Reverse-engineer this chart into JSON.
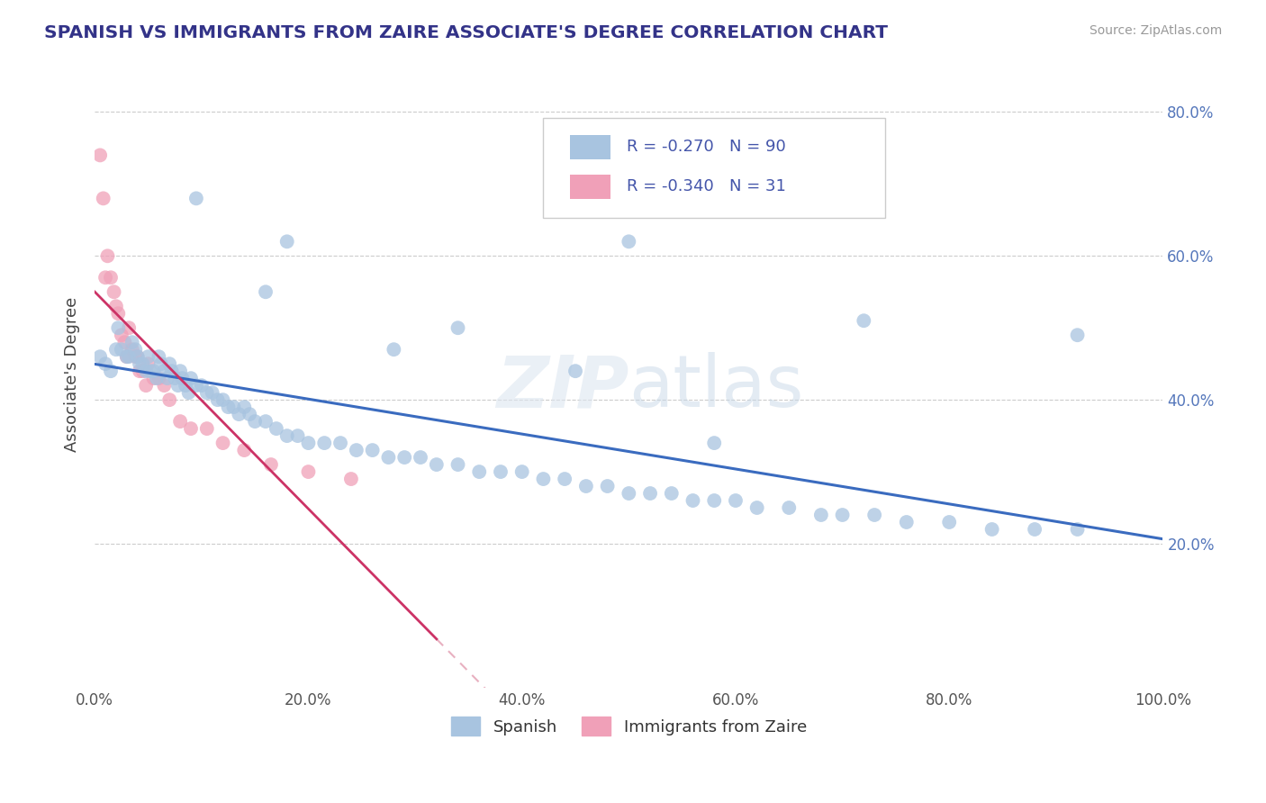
{
  "title": "SPANISH VS IMMIGRANTS FROM ZAIRE ASSOCIATE'S DEGREE CORRELATION CHART",
  "source": "Source: ZipAtlas.com",
  "ylabel": "Associate's Degree",
  "xlim": [
    0.0,
    1.0
  ],
  "ylim": [
    0.0,
    0.87
  ],
  "xticks": [
    0.0,
    0.2,
    0.4,
    0.6,
    0.8,
    1.0
  ],
  "xtick_labels": [
    "0.0%",
    "20.0%",
    "40.0%",
    "60.0%",
    "80.0%",
    "100.0%"
  ],
  "yticks": [
    0.2,
    0.4,
    0.6,
    0.8
  ],
  "ytick_labels": [
    "20.0%",
    "40.0%",
    "60.0%",
    "80.0%"
  ],
  "r_spanish": -0.27,
  "n_spanish": 90,
  "r_zaire": -0.34,
  "n_zaire": 31,
  "color_spanish": "#a8c4e0",
  "color_zaire": "#f0a0b8",
  "line_color_spanish": "#3a6bbf",
  "line_color_zaire": "#cc3366",
  "line_color_zaire_dashed": "#e8b0c0",
  "watermark": "ZIPatlas",
  "legend_spanish": "Spanish",
  "legend_zaire": "Immigrants from Zaire",
  "spanish_x": [
    0.005,
    0.01,
    0.015,
    0.02,
    0.022,
    0.025,
    0.03,
    0.032,
    0.035,
    0.038,
    0.04,
    0.042,
    0.045,
    0.048,
    0.05,
    0.052,
    0.055,
    0.058,
    0.06,
    0.062,
    0.065,
    0.068,
    0.07,
    0.072,
    0.075,
    0.078,
    0.08,
    0.082,
    0.085,
    0.088,
    0.09,
    0.095,
    0.1,
    0.105,
    0.11,
    0.115,
    0.12,
    0.125,
    0.13,
    0.135,
    0.14,
    0.145,
    0.15,
    0.16,
    0.17,
    0.18,
    0.19,
    0.2,
    0.215,
    0.23,
    0.245,
    0.26,
    0.275,
    0.29,
    0.305,
    0.32,
    0.34,
    0.36,
    0.38,
    0.4,
    0.42,
    0.44,
    0.46,
    0.48,
    0.5,
    0.52,
    0.54,
    0.56,
    0.58,
    0.6,
    0.62,
    0.65,
    0.68,
    0.7,
    0.73,
    0.76,
    0.8,
    0.84,
    0.88,
    0.92,
    0.095,
    0.18,
    0.34,
    0.5,
    0.16,
    0.28,
    0.45,
    0.58,
    0.72,
    0.92
  ],
  "spanish_y": [
    0.46,
    0.45,
    0.44,
    0.47,
    0.5,
    0.47,
    0.46,
    0.46,
    0.48,
    0.47,
    0.46,
    0.45,
    0.45,
    0.44,
    0.46,
    0.44,
    0.44,
    0.43,
    0.46,
    0.45,
    0.44,
    0.43,
    0.45,
    0.44,
    0.43,
    0.42,
    0.44,
    0.43,
    0.42,
    0.41,
    0.43,
    0.42,
    0.42,
    0.41,
    0.41,
    0.4,
    0.4,
    0.39,
    0.39,
    0.38,
    0.39,
    0.38,
    0.37,
    0.37,
    0.36,
    0.35,
    0.35,
    0.34,
    0.34,
    0.34,
    0.33,
    0.33,
    0.32,
    0.32,
    0.32,
    0.31,
    0.31,
    0.3,
    0.3,
    0.3,
    0.29,
    0.29,
    0.28,
    0.28,
    0.27,
    0.27,
    0.27,
    0.26,
    0.26,
    0.26,
    0.25,
    0.25,
    0.24,
    0.24,
    0.24,
    0.23,
    0.23,
    0.22,
    0.22,
    0.22,
    0.68,
    0.62,
    0.5,
    0.62,
    0.55,
    0.47,
    0.44,
    0.34,
    0.51,
    0.49
  ],
  "zaire_x": [
    0.005,
    0.008,
    0.01,
    0.012,
    0.015,
    0.018,
    0.02,
    0.022,
    0.025,
    0.028,
    0.03,
    0.032,
    0.035,
    0.038,
    0.04,
    0.042,
    0.045,
    0.048,
    0.05,
    0.055,
    0.06,
    0.065,
    0.07,
    0.08,
    0.09,
    0.105,
    0.12,
    0.14,
    0.165,
    0.2,
    0.24
  ],
  "zaire_y": [
    0.74,
    0.68,
    0.57,
    0.6,
    0.57,
    0.55,
    0.53,
    0.52,
    0.49,
    0.48,
    0.46,
    0.5,
    0.47,
    0.46,
    0.46,
    0.44,
    0.44,
    0.42,
    0.45,
    0.43,
    0.43,
    0.42,
    0.4,
    0.37,
    0.36,
    0.36,
    0.34,
    0.33,
    0.31,
    0.3,
    0.29
  ],
  "zaire_line_x_solid_end": 0.32,
  "zaire_line_x_dashed_end": 0.55
}
